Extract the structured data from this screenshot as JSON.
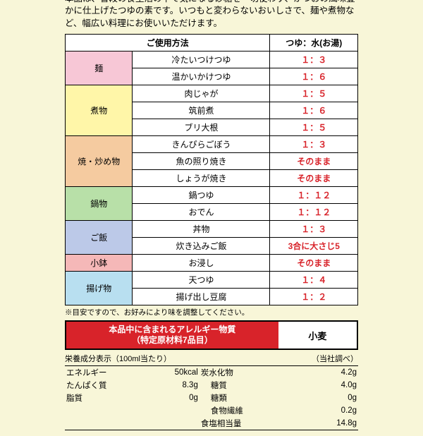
{
  "intro": "本品は、普段の食生活の中で気になる砂糖を一切使わず、かつおの風味豊かに仕上げたつゆの素です。いつもと変わらないおいしさで、麺や煮物など、幅広い料理にお使いいただけます。",
  "table_headers": {
    "usage": "ご使用方法",
    "ratio": "つゆ：水(お湯)"
  },
  "categories": [
    {
      "name": "麺",
      "color": "cat-noodle",
      "rows": [
        {
          "dish": "冷たいつけつゆ",
          "ratio": "１：３"
        },
        {
          "dish": "温かいかけつゆ",
          "ratio": "１：６"
        }
      ]
    },
    {
      "name": "煮物",
      "color": "cat-simmer",
      "rows": [
        {
          "dish": "肉じゃが",
          "ratio": "１：５"
        },
        {
          "dish": "筑前煮",
          "ratio": "１：６"
        },
        {
          "dish": "ブリ大根",
          "ratio": "１：５"
        }
      ]
    },
    {
      "name": "焼・炒め物",
      "color": "cat-fry",
      "rows": [
        {
          "dish": "きんぴらごぼう",
          "ratio": "１：３"
        },
        {
          "dish": "魚の照り焼き",
          "ratio": "そのまま"
        },
        {
          "dish": "しょうが焼き",
          "ratio": "そのまま"
        }
      ]
    },
    {
      "name": "鍋物",
      "color": "cat-hotpot",
      "rows": [
        {
          "dish": "鍋つゆ",
          "ratio": "１：１２"
        },
        {
          "dish": "おでん",
          "ratio": "１：１２"
        }
      ]
    },
    {
      "name": "ご飯",
      "color": "cat-rice",
      "rows": [
        {
          "dish": "丼物",
          "ratio": "１：３"
        },
        {
          "dish": "炊き込みご飯",
          "ratio": "3合に大さじ5"
        }
      ]
    },
    {
      "name": "小鉢",
      "color": "cat-small",
      "rows": [
        {
          "dish": "お浸し",
          "ratio": "そのまま"
        }
      ]
    },
    {
      "name": "揚げ物",
      "color": "cat-fried",
      "rows": [
        {
          "dish": "天つゆ",
          "ratio": "１：４"
        },
        {
          "dish": "揚げ出し豆腐",
          "ratio": "１：２"
        }
      ]
    }
  ],
  "note": "※目安ですので、お好みにより味を調整してください。",
  "allergen": {
    "label_line1": "本品中に含まれるアレルギー物質",
    "label_line2": "（特定原材料7品目）",
    "value": "小麦"
  },
  "nutri_header": {
    "left": "栄養成分表示（100ml当たり）",
    "right": "（当社調べ）"
  },
  "nutrition": {
    "rows": [
      {
        "l1": "エネルギー",
        "v1": "50kcal",
        "l2": "炭水化物",
        "v2": "4.2g"
      },
      {
        "l1": "たんぱく質",
        "v1": "8.3g",
        "l2": "糖質",
        "v2": "4.0g",
        "indent2": true
      },
      {
        "l1": "脂質",
        "v1": "0g",
        "l2": "糖類",
        "v2": "0g",
        "indent2": true,
        "deeper": true
      },
      {
        "l1": "",
        "v1": "",
        "l2": "食物繊維",
        "v2": "0.2g",
        "indent2": true
      },
      {
        "l1": "",
        "v1": "",
        "l2": "食塩相当量",
        "v2": "14.8g"
      }
    ]
  }
}
